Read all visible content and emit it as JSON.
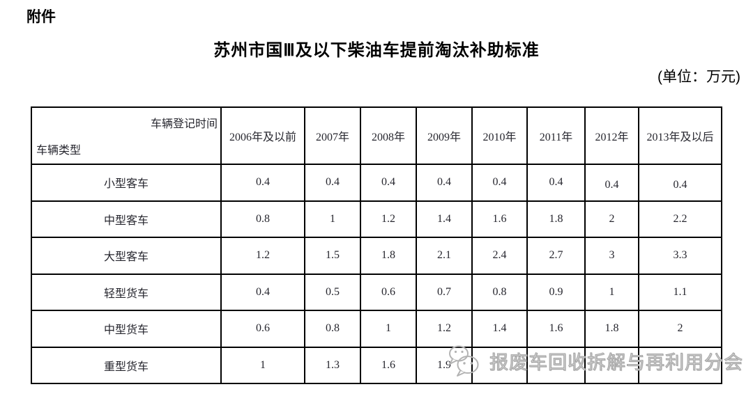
{
  "page": {
    "attachment_label": "附件",
    "title": "苏州市国Ⅲ及以下柴油车提前淘汰补助标准",
    "unit_note": "(单位：万元)"
  },
  "table": {
    "corner": {
      "top_right": "车辆登记时间",
      "bottom_left": "车辆类型"
    },
    "columns": [
      "2006年及以前",
      "2007年",
      "2008年",
      "2009年",
      "2010年",
      "2011年",
      "2012年",
      "2013年及以后"
    ],
    "rows": [
      {
        "type": "小型客车",
        "values": [
          "0.4",
          "0.4",
          "0.4",
          "0.4",
          "0.4",
          "0.4",
          "0.4",
          "0.4"
        ]
      },
      {
        "type": "中型客车",
        "values": [
          "0.8",
          "1",
          "1.2",
          "1.4",
          "1.6",
          "1.8",
          "2",
          "2.2"
        ]
      },
      {
        "type": "大型客车",
        "values": [
          "1.2",
          "1.5",
          "1.8",
          "2.1",
          "2.4",
          "2.7",
          "3",
          "3.3"
        ]
      },
      {
        "type": "轻型货车",
        "values": [
          "0.4",
          "0.5",
          "0.6",
          "0.7",
          "0.8",
          "0.9",
          "1",
          "1.1"
        ]
      },
      {
        "type": "中型货车",
        "values": [
          "0.6",
          "0.8",
          "1",
          "1.2",
          "1.4",
          "1.6",
          "1.8",
          "2"
        ]
      },
      {
        "type": "重型货车",
        "values": [
          "1",
          "1.3",
          "1.6",
          "1.9",
          "",
          "",
          "",
          ""
        ]
      }
    ]
  },
  "watermark": {
    "icon": "wechat-icon",
    "text": "报废车回收拆解与再利用分会",
    "color": "#b3b3b3"
  }
}
